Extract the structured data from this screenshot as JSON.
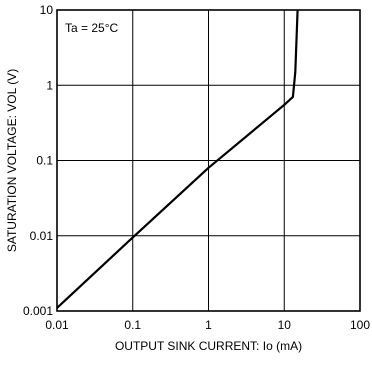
{
  "chart_data": {
    "type": "line",
    "title": "",
    "annotation": "Ta = 25°C",
    "xlabel": "OUTPUT  SINK  CURRENT: Io  (mA)",
    "ylabel": "SATURATION  VOLTAGE: VOL (V)",
    "x_scale": "log",
    "y_scale": "log",
    "xlim": [
      0.01,
      100
    ],
    "ylim": [
      0.001,
      10
    ],
    "grid": true,
    "x_ticks": [
      0.01,
      0.1,
      1,
      10,
      100
    ],
    "x_tick_labels": [
      "0.01",
      "0.1",
      "1",
      "10",
      "100"
    ],
    "y_ticks": [
      0.001,
      0.01,
      0.1,
      1,
      10
    ],
    "y_tick_labels": [
      "0.001",
      "0.01",
      "0.1",
      "1",
      "10"
    ],
    "series": [
      {
        "x": [
          0.01,
          0.1,
          1,
          10,
          13,
          14,
          15
        ],
        "y": [
          0.0011,
          0.0095,
          0.08,
          0.55,
          0.7,
          1.5,
          10
        ]
      }
    ],
    "line_color": "#000000"
  }
}
